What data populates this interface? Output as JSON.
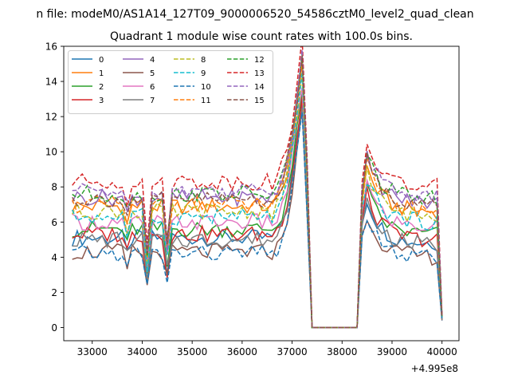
{
  "chart_data": {
    "type": "line",
    "suptitle": "n file: modeM0/AS1A14_127T09_9000006520_54586cztM0_level2_quad_clean",
    "title": "Quadrant 1 module wise count rates with 100.0s bins.",
    "xlabel": "",
    "ylabel": "",
    "x_offset_label": "+4.995e8",
    "xlim": [
      32430,
      40340
    ],
    "ylim": [
      -0.75,
      16
    ],
    "xticks": [
      33000,
      34000,
      35000,
      36000,
      37000,
      38000,
      39000,
      40000
    ],
    "xtick_labels": [
      "33000",
      "34000",
      "35000",
      "36000",
      "37000",
      "38000",
      "39000",
      "40000"
    ],
    "yticks": [
      0,
      2,
      4,
      6,
      8,
      10,
      12,
      14,
      16
    ],
    "ytick_labels": [
      "0",
      "2",
      "4",
      "6",
      "8",
      "10",
      "12",
      "14",
      "16"
    ],
    "legend_position": "upper-left",
    "x": [
      32600,
      32700,
      32800,
      32900,
      33000,
      33100,
      33200,
      33300,
      33400,
      33500,
      33600,
      33700,
      33800,
      33900,
      34000,
      34100,
      34200,
      34300,
      34400,
      34500,
      34600,
      34700,
      34800,
      34900,
      35000,
      35100,
      35200,
      35300,
      35400,
      35500,
      35600,
      35700,
      35800,
      35900,
      36000,
      36100,
      36200,
      36300,
      36400,
      36500,
      36600,
      36700,
      36800,
      36900,
      37000,
      37100,
      37200,
      37300,
      37400,
      37500,
      37600,
      37700,
      37800,
      37900,
      38000,
      38100,
      38200,
      38300,
      38400,
      38500,
      38600,
      38700,
      38800,
      38900,
      39000,
      39100,
      39200,
      39300,
      39400,
      39500,
      39600,
      39700,
      39800,
      39900,
      40000
    ],
    "gap_x_range": [
      37400,
      38300
    ],
    "series": [
      {
        "name": "0",
        "base": 5.1,
        "color": "#1f77b4",
        "style": "solid"
      },
      {
        "name": "1",
        "base": 6.9,
        "color": "#ff7f0e",
        "style": "solid"
      },
      {
        "name": "2",
        "base": 5.6,
        "color": "#2ca02c",
        "style": "solid"
      },
      {
        "name": "3",
        "base": 5.3,
        "color": "#d62728",
        "style": "solid"
      },
      {
        "name": "4",
        "base": 7.4,
        "color": "#9467bd",
        "style": "solid"
      },
      {
        "name": "5",
        "base": 4.3,
        "color": "#8c564b",
        "style": "solid"
      },
      {
        "name": "6",
        "base": 6.0,
        "color": "#e377c2",
        "style": "solid"
      },
      {
        "name": "7",
        "base": 5.0,
        "color": "#7f7f7f",
        "style": "solid"
      },
      {
        "name": "8",
        "base": 6.6,
        "color": "#bcbd22",
        "style": "dashed"
      },
      {
        "name": "9",
        "base": 6.3,
        "color": "#17becf",
        "style": "dashed"
      },
      {
        "name": "10",
        "base": 4.2,
        "color": "#1f77b4",
        "style": "dashed"
      },
      {
        "name": "11",
        "base": 7.0,
        "color": "#ff7f0e",
        "style": "dashed"
      },
      {
        "name": "12",
        "base": 7.6,
        "color": "#2ca02c",
        "style": "dashed"
      },
      {
        "name": "13",
        "base": 8.3,
        "color": "#d62728",
        "style": "dashed"
      },
      {
        "name": "14",
        "base": 7.8,
        "color": "#9467bd",
        "style": "dashed"
      },
      {
        "name": "15",
        "base": 7.3,
        "color": "#8c564b",
        "style": "dashed"
      }
    ]
  }
}
